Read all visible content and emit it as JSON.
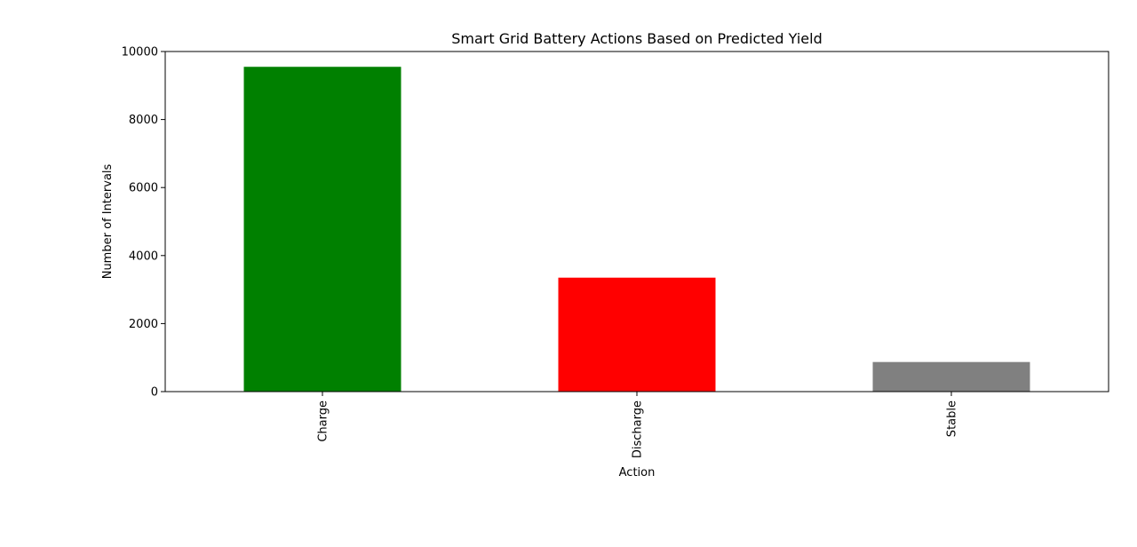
{
  "chart_data": {
    "type": "bar",
    "title": "Smart Grid Battery Actions Based on Predicted Yield",
    "xlabel": "Action",
    "ylabel": "Number of Intervals",
    "categories": [
      "Charge",
      "Discharge",
      "Stable"
    ],
    "values": [
      9550,
      3350,
      870
    ],
    "colors": [
      "#008000",
      "#ff0000",
      "#808080"
    ],
    "ylim": [
      0,
      10000
    ],
    "yticks": [
      0,
      2000,
      4000,
      6000,
      8000,
      10000
    ],
    "x_tick_rotation": "vertical",
    "grid": false,
    "legend": "none"
  }
}
